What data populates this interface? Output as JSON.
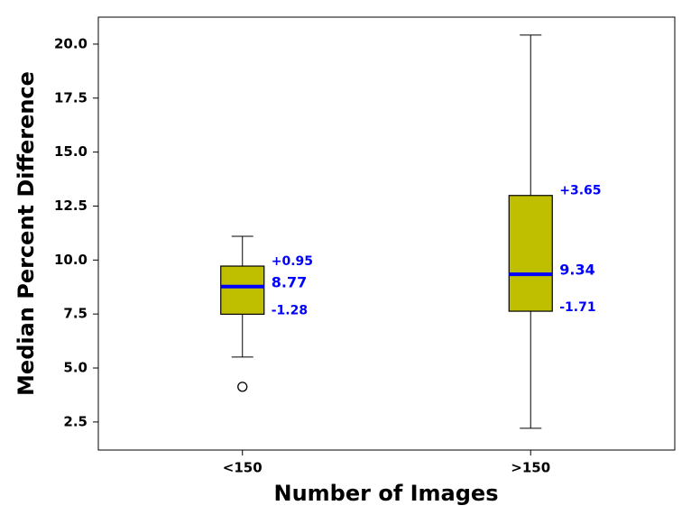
{
  "chart_data": {
    "type": "box",
    "x_label": "Number of Images",
    "y_label": "Median Percent Difference",
    "categories": [
      "<150",
      ">150"
    ],
    "box_color": "#bfbf00",
    "median_color": "#0000ff",
    "label_color": "#0000ff",
    "boxes": [
      {
        "whisker_low": 5.51,
        "q1": 7.49,
        "median": 8.77,
        "q3": 9.72,
        "whisker_high": 11.1,
        "outliers": [
          4.13
        ],
        "median_label": "8.77",
        "upper_label": "+0.95",
        "lower_label": "-1.28"
      },
      {
        "whisker_low": 2.21,
        "q1": 7.63,
        "median": 9.34,
        "q3": 12.99,
        "whisker_high": 20.42,
        "outliers": [],
        "median_label": "9.34",
        "upper_label": "+3.65",
        "lower_label": "-1.71"
      }
    ],
    "ylim": [
      1.2,
      21.25
    ],
    "yticks": [
      2.5,
      {
        "value": 5,
        "label": "5.0"
      },
      7.5,
      {
        "value": 10,
        "label": "10.0"
      },
      12.5,
      {
        "value": 15,
        "label": "15.0"
      },
      17.5,
      {
        "value": 20,
        "label": "20.0"
      }
    ],
    "grid": false
  }
}
